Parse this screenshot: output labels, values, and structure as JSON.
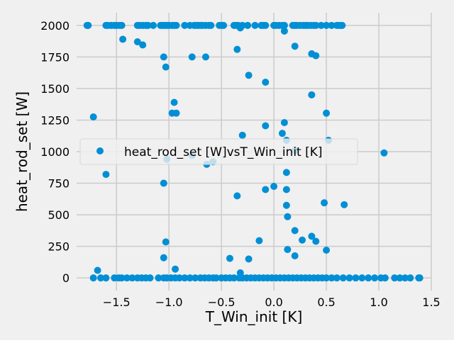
{
  "chart_data": {
    "type": "scatter",
    "xlabel": "T_Win_init [K]",
    "ylabel": "heat_rod_set [W]",
    "xlim": [
      -1.88,
      1.5
    ],
    "ylim": [
      -100,
      2100
    ],
    "xticks": [
      -1.5,
      -1.0,
      -0.5,
      0.0,
      0.5,
      1.0,
      1.5
    ],
    "xtick_labels": [
      "−1.5",
      "−1.0",
      "−0.5",
      "0.0",
      "0.5",
      "1.0",
      "1.5"
    ],
    "yticks": [
      0,
      250,
      500,
      750,
      1000,
      1250,
      1500,
      1750,
      2000
    ],
    "ytick_labels": [
      "0",
      "250",
      "500",
      "750",
      "1000",
      "1250",
      "1500",
      "1750",
      "2000"
    ],
    "grid": true,
    "legend_position": "center-left",
    "colors": {
      "series": "#008fd5",
      "background": "#f0f0f0",
      "grid": "#cbcbcb"
    },
    "series": [
      {
        "name": "heat_rod_set [W]vsT_Win_init [K]",
        "x": [
          -1.78,
          -1.77,
          -1.6,
          -1.58,
          -1.55,
          -1.52,
          -1.5,
          -1.47,
          -1.45,
          -1.3,
          -1.28,
          -1.25,
          -1.22,
          -1.2,
          -1.15,
          -1.08,
          -1.06,
          -1.04,
          -1.02,
          -1.0,
          -0.97,
          -0.95,
          -0.93,
          -0.85,
          -0.8,
          -0.76,
          -0.74,
          -0.72,
          -0.7,
          -0.68,
          -0.65,
          -0.62,
          -0.6,
          -0.52,
          -0.5,
          -0.48,
          -0.38,
          -0.36,
          -0.34,
          -0.3,
          -0.25,
          -0.18,
          -0.12,
          -0.1,
          -0.08,
          0.0,
          0.02,
          0.05,
          0.08,
          0.1,
          0.18,
          0.2,
          0.22,
          0.25,
          0.28,
          0.3,
          0.32,
          0.35,
          0.38,
          0.4,
          0.45,
          0.5,
          0.55,
          0.6,
          0.62,
          0.64,
          0.65,
          -1.44,
          -1.3,
          -1.25,
          -1.03,
          -1.05,
          -0.78,
          -0.65,
          -0.35,
          -0.24,
          -0.08,
          0.1,
          0.2,
          0.36,
          0.4,
          -0.32,
          0.36,
          -0.95,
          -0.93,
          -1.72,
          -0.97,
          0.1,
          0.5,
          -0.3,
          -0.08,
          0.08,
          0.12,
          0.52,
          1.05,
          0.2,
          -1.02,
          -0.78,
          -0.64,
          -0.58,
          -1.6,
          0.12,
          -1.05,
          0.0,
          0.12,
          -0.08,
          -0.35,
          0.67,
          0.48,
          0.12,
          0.13,
          0.2,
          0.36,
          0.27,
          0.4,
          -0.14,
          -1.03,
          0.5,
          -0.42,
          -0.24,
          0.13,
          0.2,
          -1.05,
          -1.68,
          -0.94,
          -0.32,
          -1.72,
          -1.65,
          -1.6,
          -1.52,
          -1.48,
          -1.45,
          -1.4,
          -1.35,
          -1.3,
          -1.26,
          -1.22,
          -1.18,
          -1.1,
          -1.05,
          -1.02,
          -0.98,
          -0.94,
          -0.9,
          -0.85,
          -0.8,
          -0.75,
          -0.7,
          -0.66,
          -0.62,
          -0.58,
          -0.55,
          -0.5,
          -0.46,
          -0.42,
          -0.38,
          -0.33,
          -0.3,
          -0.26,
          -0.22,
          -0.18,
          -0.14,
          -0.1,
          -0.06,
          -0.02,
          0.02,
          0.06,
          0.1,
          0.14,
          0.18,
          0.22,
          0.26,
          0.3,
          0.34,
          0.38,
          0.42,
          0.46,
          0.5,
          0.55,
          0.6,
          0.66,
          0.72,
          0.78,
          0.84,
          0.9,
          0.96,
          1.02,
          1.06,
          1.15,
          1.2,
          1.25,
          1.3,
          1.38,
          1.39
        ],
        "y": [
          2000,
          2000,
          2000,
          2000,
          2000,
          2000,
          2000,
          2000,
          2000,
          2000,
          2000,
          2000,
          2000,
          2000,
          2000,
          2000,
          2000,
          2000,
          2000,
          2000,
          2000,
          2000,
          2000,
          2000,
          2000,
          2000,
          2000,
          2000,
          2000,
          2000,
          2000,
          2000,
          2000,
          2000,
          2000,
          2000,
          2000,
          2000,
          2000,
          2000,
          2000,
          2000,
          2000,
          2000,
          2000,
          2000,
          2000,
          2000,
          2000,
          2000,
          2000,
          2000,
          2000,
          2000,
          2000,
          2000,
          2000,
          2000,
          2000,
          2000,
          2000,
          2000,
          2000,
          2000,
          2000,
          2000,
          2000,
          1890,
          1870,
          1845,
          1670,
          1750,
          1750,
          1750,
          1810,
          1605,
          1550,
          1955,
          1835,
          1775,
          1760,
          1980,
          1450,
          1390,
          1305,
          1275,
          1305,
          1230,
          1305,
          1130,
          1205,
          1145,
          1090,
          1090,
          990,
          1010,
          940,
          970,
          900,
          920,
          820,
          835,
          750,
          725,
          700,
          700,
          650,
          580,
          595,
          575,
          485,
          375,
          330,
          300,
          290,
          295,
          285,
          220,
          155,
          150,
          225,
          175,
          160,
          60,
          70,
          40,
          0,
          0,
          0,
          0,
          0,
          0,
          0,
          0,
          0,
          0,
          0,
          0,
          0,
          0,
          0,
          0,
          0,
          0,
          0,
          0,
          0,
          0,
          0,
          0,
          0,
          0,
          0,
          0,
          0,
          0,
          0,
          0,
          0,
          0,
          0,
          0,
          0,
          0,
          0,
          0,
          0,
          0,
          0,
          0,
          0,
          0,
          0,
          0,
          0,
          0,
          0,
          0,
          0,
          0,
          0,
          0,
          0,
          0,
          0,
          0,
          0,
          0,
          0,
          0,
          0,
          0,
          0,
          0
        ]
      }
    ]
  }
}
